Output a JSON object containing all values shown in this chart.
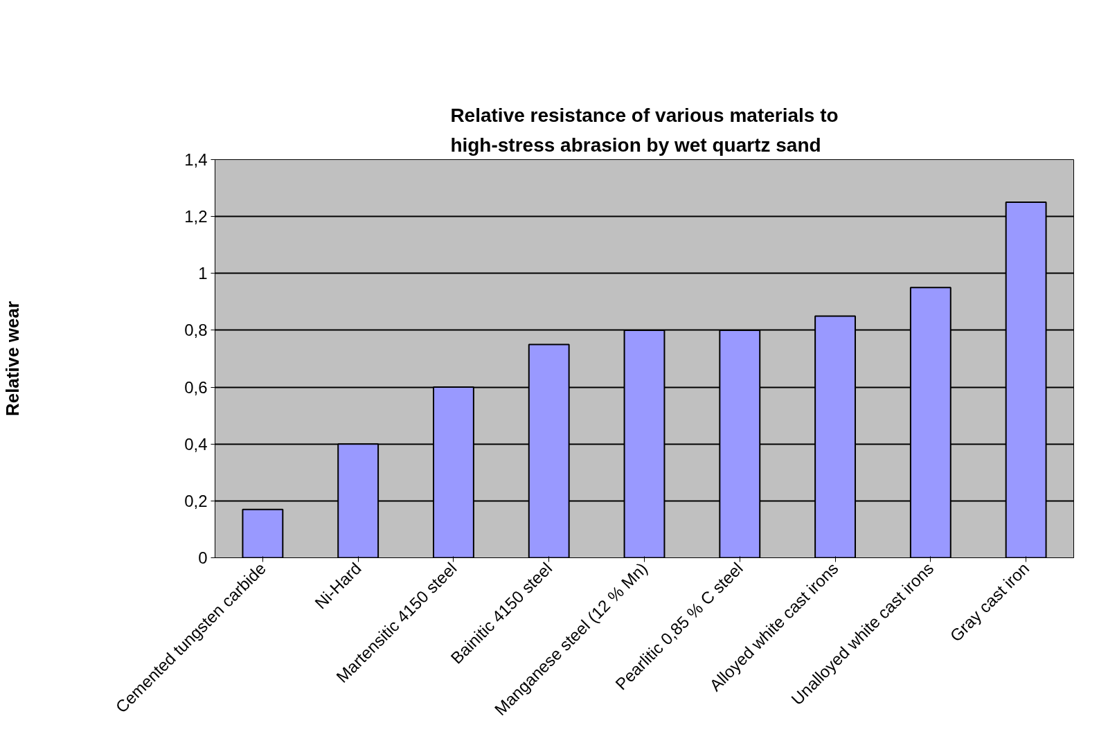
{
  "chart_data": {
    "type": "bar",
    "title": "Relative resistance of various materials to\nhigh-stress abrasion by wet quartz sand",
    "ylabel": "Relative wear",
    "categories": [
      "Cemented tungsten carbide",
      "Ni-Hard",
      "Martensitic 4150 steel",
      "Bainitic 4150 steel",
      "Manganese steel (12 % Mn)",
      "Pearlitic 0,85 % C steel",
      "Alloyed white cast irons",
      "Unalloyed white cast irons",
      "Gray cast iron"
    ],
    "values": [
      0.17,
      0.4,
      0.6,
      0.75,
      0.8,
      0.8,
      0.85,
      0.95,
      1.25
    ],
    "color": "#9999ff",
    "ylim": [
      0,
      1.4
    ],
    "yticks": [
      0,
      {
        "value": 0.2,
        "label": "0,2"
      },
      {
        "value": 0.4,
        "label": "0,4"
      },
      {
        "value": 0.6,
        "label": "0,6"
      },
      {
        "value": 0.8,
        "label": "0,8"
      },
      1,
      {
        "value": 1.2,
        "label": "1,2"
      },
      {
        "value": 1.4,
        "label": "1,4"
      }
    ],
    "grid": "y"
  }
}
